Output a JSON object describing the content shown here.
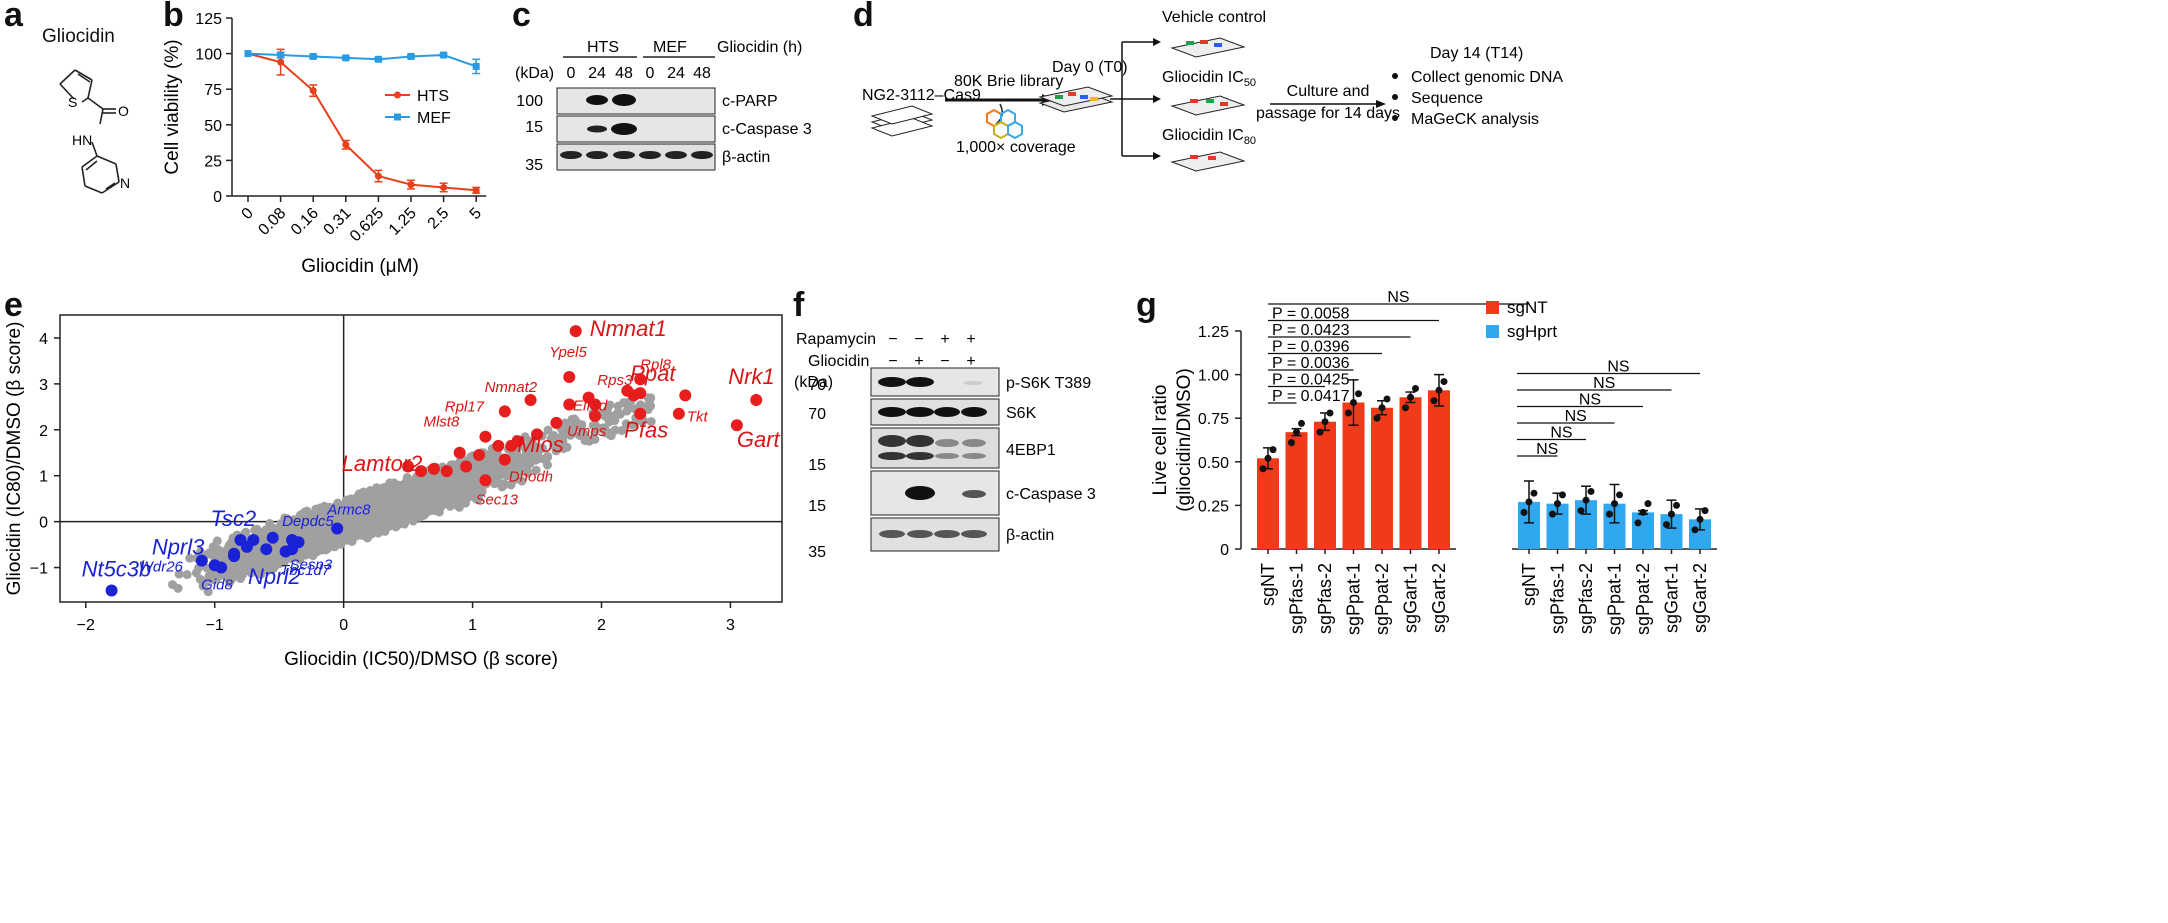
{
  "panels": {
    "a": {
      "label": "a",
      "compound_name": "Gliocidin",
      "atoms": {
        "S": "S",
        "O": "O",
        "HN": "HN",
        "N": "N"
      }
    },
    "b": {
      "label": "b",
      "chart_data": {
        "type": "line",
        "title": "",
        "xlabel": "Gliocidin (μM)",
        "ylabel": "Cell viability (%)",
        "categories": [
          "0",
          "0.08",
          "0.16",
          "0.31",
          "0.625",
          "1.25",
          "2.5",
          "5"
        ],
        "ylim": [
          0,
          125
        ],
        "yticks": [
          "0",
          "25",
          "50",
          "75",
          "100",
          "125"
        ],
        "series": [
          {
            "name": "HTS",
            "color": "#e8401c",
            "values": [
              100,
              94,
              74,
              36,
              14,
              8,
              6,
              4
            ],
            "errors": [
              0,
              9,
              4,
              3,
              4,
              3,
              3,
              2
            ]
          },
          {
            "name": "MEF",
            "color": "#2a9be3",
            "values": [
              100,
              99,
              98,
              97,
              96,
              98,
              99,
              91
            ],
            "errors": [
              0,
              2,
              1,
              1,
              1,
              1,
              1,
              5
            ]
          }
        ],
        "legend": "center-right"
      }
    },
    "c": {
      "label": "c",
      "groups": [
        "HTS",
        "MEF"
      ],
      "kda_label": "(kDa)",
      "time_header": "Gliocidin (h)",
      "timepoints": [
        "0",
        "24",
        "48",
        "0",
        "24",
        "48"
      ],
      "markers": [
        "100",
        "15",
        "35"
      ],
      "blots": [
        "c-PARP",
        "c-Caspase 3",
        "β-actin"
      ]
    },
    "d": {
      "label": "d",
      "cell_line": "NG2-3112–Cas9",
      "library": "80K Brie library",
      "coverage": "1,000× coverage",
      "day0": "Day 0 (T0)",
      "arms": [
        "Vehicle control",
        "Gliocidin IC",
        "Gliocidin IC"
      ],
      "arm_subscripts": [
        "",
        "50",
        "80"
      ],
      "culture_line1": "Culture and",
      "culture_line2": "passage for 14 days",
      "day14": "Day 14 (T14)",
      "steps": [
        "Collect genomic DNA",
        "Sequence",
        "MaGeCK analysis"
      ]
    },
    "e": {
      "label": "e",
      "chart_data": {
        "type": "scatter",
        "xlabel": "Gliocidin (IC50)/DMSO (β score)",
        "ylabel": "Gliocidin (IC80)/DMSO (β score)",
        "xlim": [
          -2.2,
          3.4
        ],
        "ylim": [
          -1.75,
          4.5
        ],
        "xticks": [
          "−2",
          "−1",
          "0",
          "1",
          "2",
          "3"
        ],
        "yticks": [
          "−1",
          "0",
          "1",
          "2",
          "3",
          "4"
        ],
        "background": "genome-wide sgRNA gene scores (grey)",
        "enriched": [
          {
            "gene": "Nmnat1",
            "x": 1.8,
            "y": 4.15
          },
          {
            "gene": "Nrk1",
            "x": 3.2,
            "y": 2.65
          },
          {
            "gene": "Gart",
            "x": 3.05,
            "y": 2.1
          },
          {
            "gene": "Ppat",
            "x": 2.3,
            "y": 2.8
          },
          {
            "gene": "Tkt",
            "x": 2.6,
            "y": 2.35
          },
          {
            "gene": "Pfas",
            "x": 2.3,
            "y": 2.35
          },
          {
            "gene": "Rpl8",
            "x": 2.3,
            "y": 3.1
          },
          {
            "gene": "Rps3",
            "x": 2.2,
            "y": 2.85
          },
          {
            "gene": "Ypel5",
            "x": 1.75,
            "y": 3.15
          },
          {
            "gene": "Nmnat2",
            "x": 1.45,
            "y": 2.65
          },
          {
            "gene": "Eif3d",
            "x": 1.95,
            "y": 2.55
          },
          {
            "gene": "Umps",
            "x": 1.95,
            "y": 2.3
          },
          {
            "gene": "Rpl17",
            "x": 1.25,
            "y": 2.4
          },
          {
            "gene": "Mlst8",
            "x": 1.1,
            "y": 1.85
          },
          {
            "gene": "Mios",
            "x": 1.3,
            "y": 1.65
          },
          {
            "gene": "Lamtor2",
            "x": 0.9,
            "y": 1.5
          },
          {
            "gene": "Dhodh",
            "x": 1.25,
            "y": 1.35
          },
          {
            "gene": "Sec13",
            "x": 1.1,
            "y": 0.9
          }
        ],
        "depleted": [
          {
            "gene": "Nt5c3b",
            "x": -1.8,
            "y": -1.5
          },
          {
            "gene": "Tsc2",
            "x": -0.8,
            "y": -0.4
          },
          {
            "gene": "Nprl3",
            "x": -1.1,
            "y": -0.85
          },
          {
            "gene": "Depdc5",
            "x": -0.4,
            "y": -0.4
          },
          {
            "gene": "Armc8",
            "x": -0.05,
            "y": -0.15
          },
          {
            "gene": "Wdr26",
            "x": -1.0,
            "y": -0.95
          },
          {
            "gene": "Sesn3",
            "x": -0.45,
            "y": -0.65
          },
          {
            "gene": "Gid8",
            "x": -0.95,
            "y": -1.0
          },
          {
            "gene": "Nprl2",
            "x": -0.85,
            "y": -0.7
          },
          {
            "gene": "Tbc1d7",
            "x": -0.4,
            "y": -0.6
          }
        ],
        "unlabeled_enriched": [
          [
            0.5,
            1.2
          ],
          [
            0.6,
            1.1
          ],
          [
            0.7,
            1.15
          ],
          [
            0.8,
            1.1
          ],
          [
            0.95,
            1.2
          ],
          [
            1.05,
            1.45
          ],
          [
            1.2,
            1.65
          ],
          [
            1.35,
            1.75
          ],
          [
            1.5,
            1.9
          ],
          [
            1.65,
            2.15
          ],
          [
            1.75,
            2.55
          ],
          [
            1.9,
            2.7
          ],
          [
            2.25,
            2.75
          ],
          [
            2.65,
            2.75
          ]
        ],
        "unlabeled_depleted": [
          [
            -0.6,
            -0.6
          ],
          [
            -0.75,
            -0.55
          ],
          [
            -0.55,
            -0.35
          ],
          [
            -0.85,
            -0.75
          ],
          [
            -0.7,
            -0.4
          ],
          [
            -0.35,
            -0.45
          ]
        ]
      }
    },
    "f": {
      "label": "f",
      "treatments": [
        {
          "name": "Rapamycin",
          "values": [
            "−",
            "−",
            "+",
            "+"
          ]
        },
        {
          "name": "Gliocidin",
          "values": [
            "−",
            "+",
            "−",
            "+"
          ]
        }
      ],
      "kda_label": "(kDa)",
      "markers": [
        "70",
        "70",
        "15",
        "15",
        "35"
      ],
      "blots": [
        "p-S6K T389",
        "S6K",
        "4EBP1",
        "c-Caspase 3",
        "β-actin"
      ]
    },
    "g": {
      "label": "g",
      "chart_data": {
        "type": "bar",
        "ylabel": "Live cell ratio (gliocidin/DMSO)",
        "ylim": [
          0,
          1.25
        ],
        "yticks": [
          "0",
          "0.25",
          "0.50",
          "0.75",
          "1.00",
          "1.25"
        ],
        "categories": [
          "sgNT",
          "sgPfas-1",
          "sgPfas-2",
          "sgPpat-1",
          "sgPpat-2",
          "sgGart-1",
          "sgGart-2"
        ],
        "series": [
          {
            "name": "sgNT",
            "color": "#f03a1a",
            "values": [
              0.52,
              0.67,
              0.73,
              0.84,
              0.81,
              0.87,
              0.91
            ],
            "errors": [
              0.06,
              0.02,
              0.05,
              0.13,
              0.04,
              0.03,
              0.09
            ]
          },
          {
            "name": "sgHprt",
            "color": "#30a7ee",
            "values": [
              0.27,
              0.26,
              0.28,
              0.26,
              0.21,
              0.2,
              0.17
            ],
            "errors": [
              0.12,
              0.06,
              0.08,
              0.11,
              0.01,
              0.08,
              0.06
            ]
          }
        ],
        "comparisons_sgNT": [
          "P = 0.0417",
          "P = 0.0425",
          "P = 0.0036",
          "P = 0.0396",
          "P = 0.0423",
          "P = 0.0058",
          "NS"
        ],
        "comparisons_sgHprt": [
          "NS",
          "NS",
          "NS",
          "NS",
          "NS",
          "NS"
        ],
        "legend": [
          "sgNT",
          "sgHprt"
        ]
      }
    }
  }
}
